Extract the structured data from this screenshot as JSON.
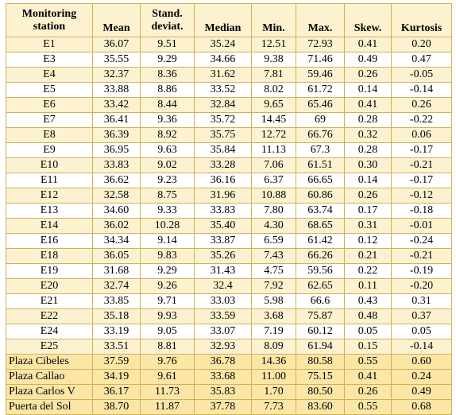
{
  "headers": {
    "station": [
      "Monitoring",
      "station"
    ],
    "mean": "Mean",
    "stdev": [
      "Stand.",
      "deviat."
    ],
    "median": "Median",
    "min": "Min.",
    "max": "Max.",
    "skew": "Skew.",
    "kurt": "Kurtosis"
  },
  "rows": [
    {
      "station": "E1",
      "mean": "36.07",
      "stdev": "9.51",
      "median": "35.24",
      "min": "12.51",
      "max": "72.93",
      "skew": "0.41",
      "kurt": "0.20"
    },
    {
      "station": "E3",
      "mean": "35.55",
      "stdev": "9.29",
      "median": "34.66",
      "min": "9.38",
      "max": "71.46",
      "skew": "0.49",
      "kurt": "0.47"
    },
    {
      "station": "E4",
      "mean": "32.37",
      "stdev": "8.36",
      "median": "31.62",
      "min": "7.81",
      "max": "59.46",
      "skew": "0.26",
      "kurt": "-0.05"
    },
    {
      "station": "E5",
      "mean": "33.88",
      "stdev": "8.86",
      "median": "33.52",
      "min": "8.02",
      "max": "61.72",
      "skew": "0.14",
      "kurt": "-0.14"
    },
    {
      "station": "E6",
      "mean": "33.42",
      "stdev": "8.44",
      "median": "32.84",
      "min": "9.65",
      "max": "65.46",
      "skew": "0.41",
      "kurt": "0.26"
    },
    {
      "station": "E7",
      "mean": "36.41",
      "stdev": "9.36",
      "median": "35.72",
      "min": "14.45",
      "max": "69",
      "skew": "0.28",
      "kurt": "-0.22"
    },
    {
      "station": "E8",
      "mean": "36.39",
      "stdev": "8.92",
      "median": "35.75",
      "min": "12.72",
      "max": "66.76",
      "skew": "0.32",
      "kurt": "0.06"
    },
    {
      "station": "E9",
      "mean": "36.95",
      "stdev": "9.63",
      "median": "35.84",
      "min": "11.13",
      "max": "67.3",
      "skew": "0.28",
      "kurt": "-0.17"
    },
    {
      "station": "E10",
      "mean": "33.83",
      "stdev": "9.02",
      "median": "33.28",
      "min": "7.06",
      "max": "61.51",
      "skew": "0.30",
      "kurt": "-0.21"
    },
    {
      "station": "E11",
      "mean": "36.62",
      "stdev": "9.23",
      "median": "36.16",
      "min": "6.37",
      "max": "66.65",
      "skew": "0.14",
      "kurt": "-0.17"
    },
    {
      "station": "E12",
      "mean": "32.58",
      "stdev": "8.75",
      "median": "31.96",
      "min": "10.88",
      "max": "60.86",
      "skew": "0.26",
      "kurt": "-0.12"
    },
    {
      "station": "E13",
      "mean": "34.60",
      "stdev": "9.33",
      "median": "33.83",
      "min": "7.80",
      "max": "63.74",
      "skew": "0.17",
      "kurt": "-0.18"
    },
    {
      "station": "E14",
      "mean": "36.02",
      "stdev": "10.28",
      "median": "35.40",
      "min": "4.30",
      "max": "68.65",
      "skew": "0.31",
      "kurt": "-0.01"
    },
    {
      "station": "E16",
      "mean": "34.34",
      "stdev": "9.14",
      "median": "33.87",
      "min": "6.59",
      "max": "61.42",
      "skew": "0.12",
      "kurt": "-0.24"
    },
    {
      "station": "E18",
      "mean": "36.05",
      "stdev": "9.83",
      "median": "35.26",
      "min": "7.43",
      "max": "66.26",
      "skew": "0.21",
      "kurt": "-0.21"
    },
    {
      "station": "E19",
      "mean": "31.68",
      "stdev": "9.29",
      "median": "31.43",
      "min": "4.75",
      "max": "59.56",
      "skew": "0.22",
      "kurt": "-0.19"
    },
    {
      "station": "E20",
      "mean": "32.74",
      "stdev": "9.26",
      "median": "32.4",
      "min": "7.92",
      "max": "62.65",
      "skew": "0.11",
      "kurt": "-0.20"
    },
    {
      "station": "E21",
      "mean": "33.85",
      "stdev": "9.71",
      "median": "33.03",
      "min": "5.98",
      "max": "66.6",
      "skew": "0.43",
      "kurt": "0.31"
    },
    {
      "station": "E22",
      "mean": "35.18",
      "stdev": "9.93",
      "median": "33.59",
      "min": "3.68",
      "max": "75.87",
      "skew": "0.48",
      "kurt": "0.37"
    },
    {
      "station": "E24",
      "mean": "33.19",
      "stdev": "9.05",
      "median": "33.07",
      "min": "7.19",
      "max": "60.12",
      "skew": "0.05",
      "kurt": "0.05"
    },
    {
      "station": "E25",
      "mean": "33.51",
      "stdev": "8.81",
      "median": "32.93",
      "min": "8.09",
      "max": "61.94",
      "skew": "0.15",
      "kurt": "-0.14"
    },
    {
      "station": "Plaza Cibeles",
      "mean": "37.59",
      "stdev": "9.76",
      "median": "36.78",
      "min": "14.36",
      "max": "80.58",
      "skew": "0.55",
      "kurt": "0.60"
    },
    {
      "station": "Plaza Callao",
      "mean": "34.19",
      "stdev": "9.61",
      "median": "33.68",
      "min": "11.00",
      "max": "75.15",
      "skew": "0.41",
      "kurt": "0.24"
    },
    {
      "station": "Plaza Carlos V",
      "mean": "36.17",
      "stdev": "11.73",
      "median": "35.83",
      "min": "1.70",
      "max": "80.50",
      "skew": "0.26",
      "kurt": "0.49"
    },
    {
      "station": "Puerta del Sol",
      "mean": "38.70",
      "stdev": "11.87",
      "median": "37.78",
      "min": "7.73",
      "max": "83.60",
      "skew": "0.55",
      "kurt": "0.68"
    }
  ]
}
